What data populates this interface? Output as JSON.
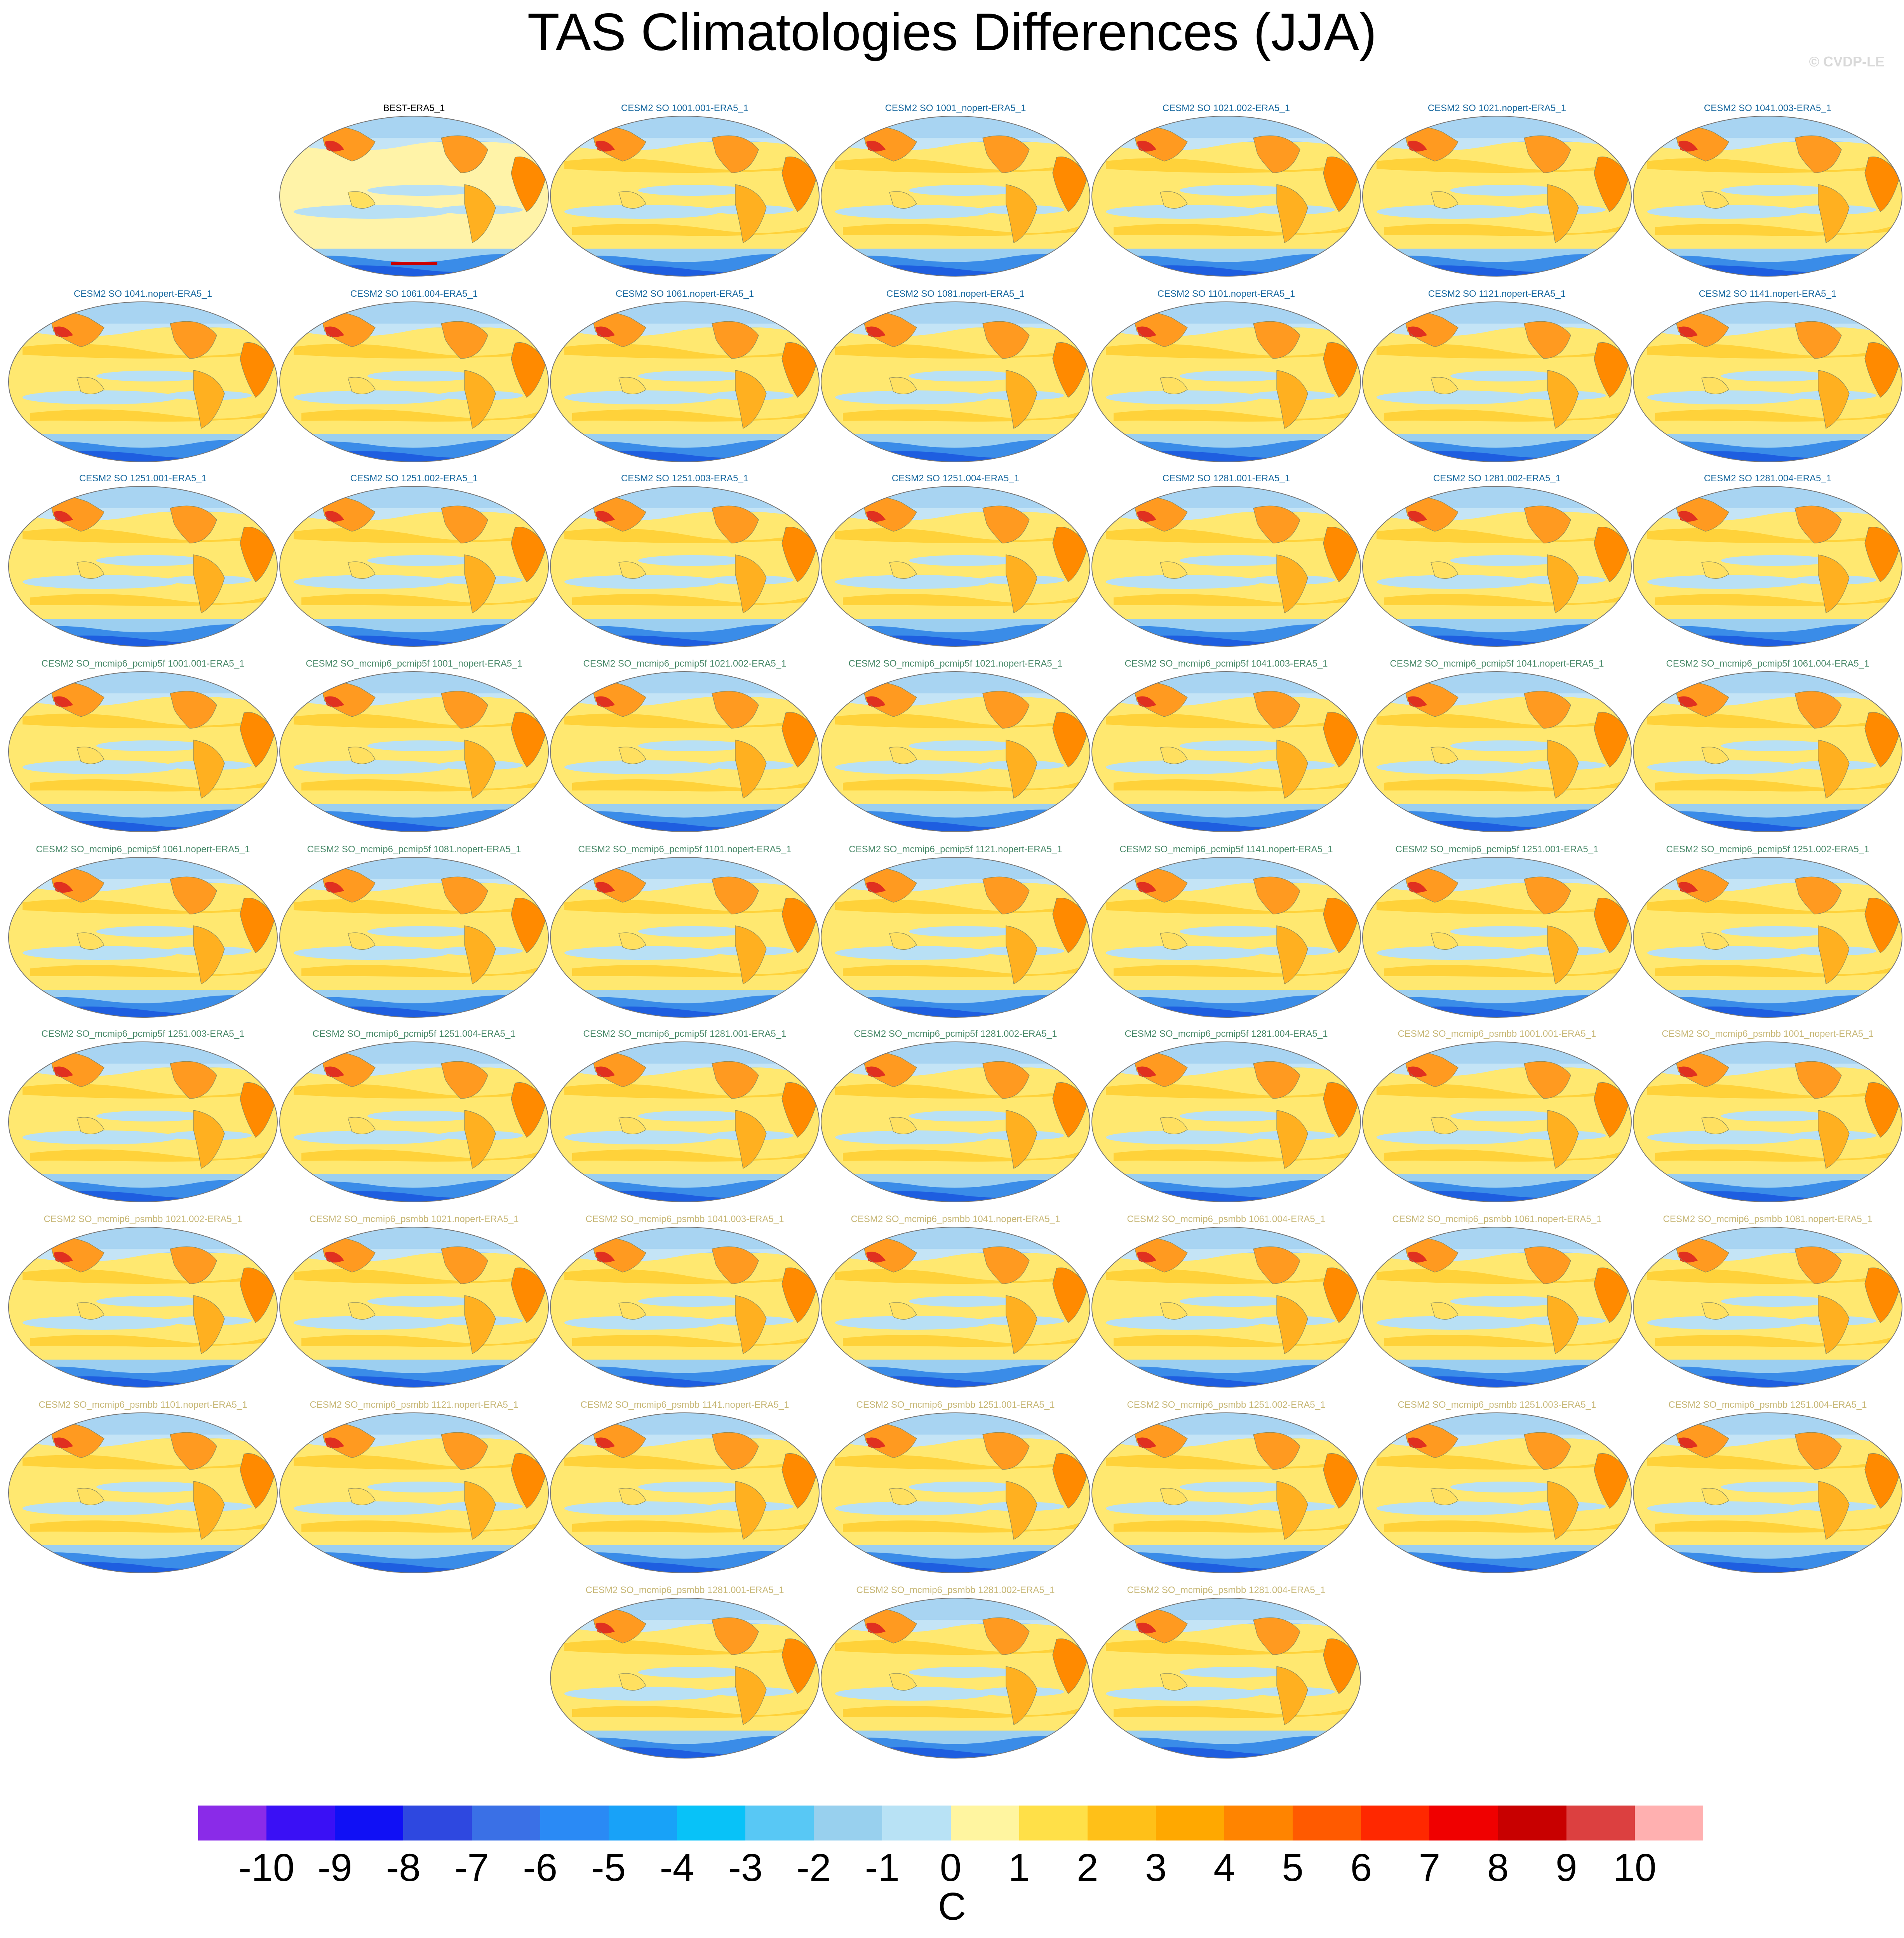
{
  "title": "TAS Climatologies Differences (JJA)",
  "credit": "© CVDP-LE",
  "title_colors": {
    "obs": "#000000",
    "cesm2_so": "#1a6aa0",
    "pcmip5f": "#4a8a6a",
    "psmbb": "#c8b878"
  },
  "panels": [
    {
      "title": "BEST-ERA5_1",
      "group": "obs"
    },
    {
      "title": "CESM2 SO 1001.001-ERA5_1",
      "group": "cesm2_so"
    },
    {
      "title": "CESM2 SO 1001_nopert-ERA5_1",
      "group": "cesm2_so"
    },
    {
      "title": "CESM2 SO 1021.002-ERA5_1",
      "group": "cesm2_so"
    },
    {
      "title": "CESM2 SO 1021.nopert-ERA5_1",
      "group": "cesm2_so"
    },
    {
      "title": "CESM2 SO 1041.003-ERA5_1",
      "group": "cesm2_so"
    },
    {
      "title": "CESM2 SO 1041.nopert-ERA5_1",
      "group": "cesm2_so"
    },
    {
      "title": "CESM2 SO 1061.004-ERA5_1",
      "group": "cesm2_so"
    },
    {
      "title": "CESM2 SO 1061.nopert-ERA5_1",
      "group": "cesm2_so"
    },
    {
      "title": "CESM2 SO 1081.nopert-ERA5_1",
      "group": "cesm2_so"
    },
    {
      "title": "CESM2 SO 1101.nopert-ERA5_1",
      "group": "cesm2_so"
    },
    {
      "title": "CESM2 SO 1121.nopert-ERA5_1",
      "group": "cesm2_so"
    },
    {
      "title": "CESM2 SO 1141.nopert-ERA5_1",
      "group": "cesm2_so"
    },
    {
      "title": "CESM2 SO 1251.001-ERA5_1",
      "group": "cesm2_so"
    },
    {
      "title": "CESM2 SO 1251.002-ERA5_1",
      "group": "cesm2_so"
    },
    {
      "title": "CESM2 SO 1251.003-ERA5_1",
      "group": "cesm2_so"
    },
    {
      "title": "CESM2 SO 1251.004-ERA5_1",
      "group": "cesm2_so"
    },
    {
      "title": "CESM2 SO 1281.001-ERA5_1",
      "group": "cesm2_so"
    },
    {
      "title": "CESM2 SO 1281.002-ERA5_1",
      "group": "cesm2_so"
    },
    {
      "title": "CESM2 SO 1281.004-ERA5_1",
      "group": "cesm2_so"
    },
    {
      "title": "CESM2 SO_mcmip6_pcmip5f 1001.001-ERA5_1",
      "group": "pcmip5f"
    },
    {
      "title": "CESM2 SO_mcmip6_pcmip5f 1001_nopert-ERA5_1",
      "group": "pcmip5f"
    },
    {
      "title": "CESM2 SO_mcmip6_pcmip5f 1021.002-ERA5_1",
      "group": "pcmip5f"
    },
    {
      "title": "CESM2 SO_mcmip6_pcmip5f 1021.nopert-ERA5_1",
      "group": "pcmip5f"
    },
    {
      "title": "CESM2 SO_mcmip6_pcmip5f 1041.003-ERA5_1",
      "group": "pcmip5f"
    },
    {
      "title": "CESM2 SO_mcmip6_pcmip5f 1041.nopert-ERA5_1",
      "group": "pcmip5f"
    },
    {
      "title": "CESM2 SO_mcmip6_pcmip5f 1061.004-ERA5_1",
      "group": "pcmip5f"
    },
    {
      "title": "CESM2 SO_mcmip6_pcmip5f 1061.nopert-ERA5_1",
      "group": "pcmip5f"
    },
    {
      "title": "CESM2 SO_mcmip6_pcmip5f 1081.nopert-ERA5_1",
      "group": "pcmip5f"
    },
    {
      "title": "CESM2 SO_mcmip6_pcmip5f 1101.nopert-ERA5_1",
      "group": "pcmip5f"
    },
    {
      "title": "CESM2 SO_mcmip6_pcmip5f 1121.nopert-ERA5_1",
      "group": "pcmip5f"
    },
    {
      "title": "CESM2 SO_mcmip6_pcmip5f 1141.nopert-ERA5_1",
      "group": "pcmip5f"
    },
    {
      "title": "CESM2 SO_mcmip6_pcmip5f 1251.001-ERA5_1",
      "group": "pcmip5f"
    },
    {
      "title": "CESM2 SO_mcmip6_pcmip5f 1251.002-ERA5_1",
      "group": "pcmip5f"
    },
    {
      "title": "CESM2 SO_mcmip6_pcmip5f 1251.003-ERA5_1",
      "group": "pcmip5f"
    },
    {
      "title": "CESM2 SO_mcmip6_pcmip5f 1251.004-ERA5_1",
      "group": "pcmip5f"
    },
    {
      "title": "CESM2 SO_mcmip6_pcmip5f 1281.001-ERA5_1",
      "group": "pcmip5f"
    },
    {
      "title": "CESM2 SO_mcmip6_pcmip5f 1281.002-ERA5_1",
      "group": "pcmip5f"
    },
    {
      "title": "CESM2 SO_mcmip6_pcmip5f 1281.004-ERA5_1",
      "group": "pcmip5f"
    },
    {
      "title": "CESM2 SO_mcmip6_psmbb 1001.001-ERA5_1",
      "group": "psmbb"
    },
    {
      "title": "CESM2 SO_mcmip6_psmbb 1001_nopert-ERA5_1",
      "group": "psmbb"
    },
    {
      "title": "CESM2 SO_mcmip6_psmbb 1021.002-ERA5_1",
      "group": "psmbb"
    },
    {
      "title": "CESM2 SO_mcmip6_psmbb 1021.nopert-ERA5_1",
      "group": "psmbb"
    },
    {
      "title": "CESM2 SO_mcmip6_psmbb 1041.003-ERA5_1",
      "group": "psmbb"
    },
    {
      "title": "CESM2 SO_mcmip6_psmbb 1041.nopert-ERA5_1",
      "group": "psmbb"
    },
    {
      "title": "CESM2 SO_mcmip6_psmbb 1061.004-ERA5_1",
      "group": "psmbb"
    },
    {
      "title": "CESM2 SO_mcmip6_psmbb 1061.nopert-ERA5_1",
      "group": "psmbb"
    },
    {
      "title": "CESM2 SO_mcmip6_psmbb 1081.nopert-ERA5_1",
      "group": "psmbb"
    },
    {
      "title": "CESM2 SO_mcmip6_psmbb 1101.nopert-ERA5_1",
      "group": "psmbb"
    },
    {
      "title": "CESM2 SO_mcmip6_psmbb 1121.nopert-ERA5_1",
      "group": "psmbb"
    },
    {
      "title": "CESM2 SO_mcmip6_psmbb 1141.nopert-ERA5_1",
      "group": "psmbb"
    },
    {
      "title": "CESM2 SO_mcmip6_psmbb 1251.001-ERA5_1",
      "group": "psmbb"
    },
    {
      "title": "CESM2 SO_mcmip6_psmbb 1251.002-ERA5_1",
      "group": "psmbb"
    },
    {
      "title": "CESM2 SO_mcmip6_psmbb 1251.003-ERA5_1",
      "group": "psmbb"
    },
    {
      "title": "CESM2 SO_mcmip6_psmbb 1251.004-ERA5_1",
      "group": "psmbb"
    },
    {
      "title": "CESM2 SO_mcmip6_psmbb 1281.001-ERA5_1",
      "group": "psmbb"
    },
    {
      "title": "CESM2 SO_mcmip6_psmbb 1281.002-ERA5_1",
      "group": "psmbb"
    },
    {
      "title": "CESM2 SO_mcmip6_psmbb 1281.004-ERA5_1",
      "group": "psmbb"
    }
  ],
  "colorbar": {
    "labels": [
      "-10",
      "-9",
      "-8",
      "-7",
      "-6",
      "-5",
      "-4",
      "-3",
      "-2",
      "-1",
      "0",
      "1",
      "2",
      "3",
      "4",
      "5",
      "6",
      "7",
      "8",
      "9",
      "10"
    ],
    "colors": [
      "#8a2be8",
      "#3a10f5",
      "#1010f5",
      "#2e48e0",
      "#3a70e6",
      "#2a8af5",
      "#18a2f8",
      "#08c2f8",
      "#58c8f5",
      "#98d0ee",
      "#b8e2f5",
      "#fff5a0",
      "#ffe048",
      "#ffc018",
      "#ffa800",
      "#ff8400",
      "#ff5a00",
      "#ff2800",
      "#f00000",
      "#c80000",
      "#dc4040",
      "#ffb0b0"
    ],
    "units": "C"
  }
}
